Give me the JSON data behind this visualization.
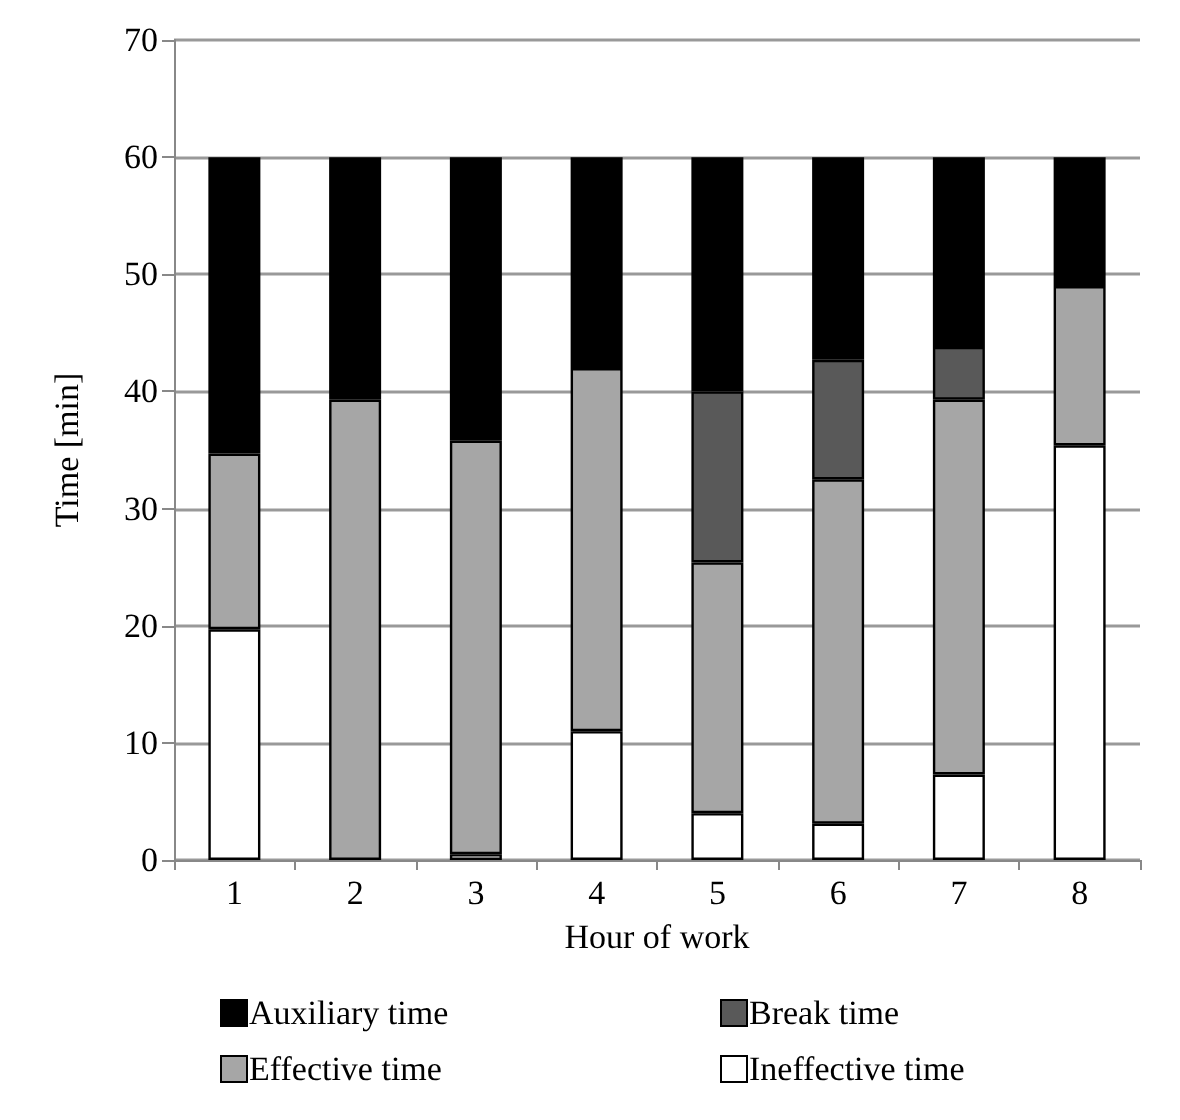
{
  "chart_data": {
    "type": "bar",
    "stacked": true,
    "xlabel": "Hour of work",
    "ylabel": "Time [min]",
    "categories": [
      "1",
      "2",
      "3",
      "4",
      "5",
      "6",
      "7",
      "8"
    ],
    "series": [
      {
        "name": "Ineffective time",
        "color": "#ffffff",
        "values": [
          19.7,
          null,
          0.5,
          11.0,
          4.0,
          3.1,
          7.3,
          35.4
        ]
      },
      {
        "name": "Effective time",
        "color": "#a6a6a6",
        "values": [
          15.0,
          39.3,
          35.3,
          31.0,
          21.4,
          29.4,
          32.0,
          13.6
        ]
      },
      {
        "name": "Break time",
        "color": "#595959",
        "values": [
          null,
          null,
          null,
          null,
          14.6,
          10.2,
          4.5,
          null
        ]
      },
      {
        "name": "Auxiliary time",
        "color": "#000000",
        "values": [
          25.3,
          20.7,
          24.2,
          18.0,
          20.0,
          17.3,
          16.2,
          11.0
        ]
      }
    ],
    "ylim": [
      0,
      70
    ],
    "yticks": [
      0,
      10,
      20,
      30,
      40,
      50,
      60,
      70
    ],
    "grid": "y",
    "legend": "bottom"
  }
}
